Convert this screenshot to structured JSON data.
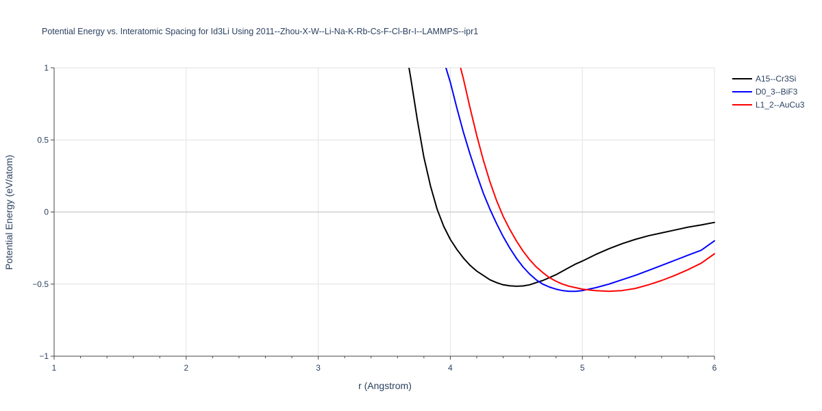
{
  "chart_data": {
    "type": "line",
    "title": "Potential Energy vs. Interatomic Spacing for Id3Li Using 2011--Zhou-X-W--Li-Na-K-Rb-Cs-F-Cl-Br-I--LAMMPS--ipr1",
    "xlabel": "r (Angstrom)",
    "ylabel": "Potential Energy (eV/atom)",
    "xlim": [
      1,
      6
    ],
    "ylim": [
      -1,
      1
    ],
    "xticks": [
      1,
      2,
      3,
      4,
      5,
      6
    ],
    "xtick_labels": [
      "1",
      "2",
      "3",
      "4",
      "5",
      "6"
    ],
    "yticks": [
      -1,
      -0.5,
      0,
      0.5,
      1
    ],
    "ytick_labels": [
      "−1",
      "−0.5",
      "0",
      "0.5",
      "1"
    ],
    "grid": true,
    "legend_position": "top-right",
    "series": [
      {
        "name": "A15--Cr3Si",
        "color": "#000000",
        "x": [
          3.6,
          3.65,
          3.7,
          3.75,
          3.8,
          3.85,
          3.9,
          3.95,
          4.0,
          4.05,
          4.1,
          4.15,
          4.2,
          4.25,
          4.3,
          4.35,
          4.4,
          4.45,
          4.5,
          4.55,
          4.6,
          4.65,
          4.7,
          4.75,
          4.8,
          4.85,
          4.9,
          4.95,
          5.0,
          5.1,
          5.2,
          5.3,
          5.4,
          5.5,
          5.6,
          5.7,
          5.8,
          5.9,
          6.0
        ],
        "y": [
          1.45,
          1.2,
          0.93,
          0.64,
          0.38,
          0.18,
          0.02,
          -0.1,
          -0.19,
          -0.26,
          -0.32,
          -0.37,
          -0.41,
          -0.44,
          -0.47,
          -0.49,
          -0.505,
          -0.512,
          -0.515,
          -0.513,
          -0.505,
          -0.49,
          -0.475,
          -0.455,
          -0.435,
          -0.41,
          -0.385,
          -0.36,
          -0.34,
          -0.295,
          -0.255,
          -0.22,
          -0.19,
          -0.165,
          -0.145,
          -0.125,
          -0.105,
          -0.09,
          -0.072
        ]
      },
      {
        "name": "D0_3--BiF3",
        "color": "#0000ff",
        "x": [
          3.95,
          4.0,
          4.05,
          4.1,
          4.15,
          4.2,
          4.25,
          4.3,
          4.35,
          4.4,
          4.45,
          4.5,
          4.55,
          4.6,
          4.65,
          4.7,
          4.75,
          4.8,
          4.85,
          4.9,
          4.95,
          5.0,
          5.1,
          5.2,
          5.3,
          5.4,
          5.5,
          5.6,
          5.7,
          5.8,
          5.9,
          6.0
        ],
        "y": [
          1.05,
          0.9,
          0.72,
          0.55,
          0.4,
          0.26,
          0.13,
          0.02,
          -0.08,
          -0.17,
          -0.25,
          -0.32,
          -0.38,
          -0.43,
          -0.47,
          -0.5,
          -0.52,
          -0.535,
          -0.545,
          -0.55,
          -0.55,
          -0.545,
          -0.525,
          -0.5,
          -0.47,
          -0.44,
          -0.405,
          -0.37,
          -0.335,
          -0.3,
          -0.265,
          -0.2
        ]
      },
      {
        "name": "L1_2--AuCu3",
        "color": "#ff0000",
        "x": [
          4.05,
          4.1,
          4.15,
          4.2,
          4.25,
          4.3,
          4.35,
          4.4,
          4.45,
          4.5,
          4.55,
          4.6,
          4.65,
          4.7,
          4.75,
          4.8,
          4.85,
          4.9,
          4.95,
          5.0,
          5.05,
          5.1,
          5.2,
          5.3,
          5.4,
          5.5,
          5.6,
          5.7,
          5.8,
          5.9,
          6.0
        ],
        "y": [
          1.1,
          0.92,
          0.72,
          0.53,
          0.36,
          0.21,
          0.08,
          -0.03,
          -0.12,
          -0.2,
          -0.27,
          -0.33,
          -0.38,
          -0.42,
          -0.455,
          -0.48,
          -0.5,
          -0.515,
          -0.525,
          -0.535,
          -0.54,
          -0.545,
          -0.55,
          -0.545,
          -0.53,
          -0.505,
          -0.475,
          -0.44,
          -0.4,
          -0.355,
          -0.29
        ]
      }
    ]
  }
}
